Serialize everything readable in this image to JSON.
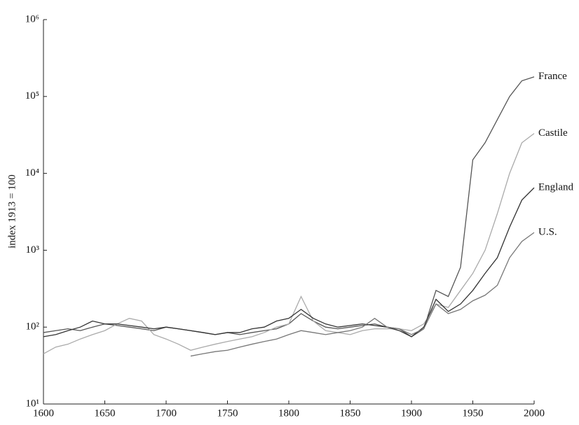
{
  "chart_data": {
    "type": "line",
    "ylabel": "index 1913 = 100",
    "log_y": true,
    "x": [
      1600,
      1610,
      1620,
      1630,
      1640,
      1650,
      1660,
      1670,
      1680,
      1690,
      1700,
      1710,
      1720,
      1730,
      1740,
      1750,
      1760,
      1770,
      1780,
      1790,
      1800,
      1810,
      1820,
      1830,
      1840,
      1850,
      1860,
      1870,
      1880,
      1890,
      1900,
      1910,
      1920,
      1930,
      1940,
      1950,
      1960,
      1970,
      1980,
      1990,
      2000
    ],
    "series": [
      {
        "name": "France",
        "color": "#555555",
        "values": [
          85,
          90,
          95,
          90,
          100,
          110,
          105,
          100,
          95,
          90,
          100,
          95,
          90,
          85,
          80,
          85,
          80,
          85,
          90,
          95,
          110,
          150,
          120,
          100,
          95,
          100,
          105,
          110,
          100,
          95,
          75,
          95,
          300,
          250,
          600,
          15000,
          25000,
          50000,
          100000,
          160000,
          180000
        ]
      },
      {
        "name": "Castile",
        "color": "#aaaaaa",
        "values": [
          45,
          55,
          60,
          70,
          80,
          90,
          110,
          130,
          120,
          80,
          70,
          60,
          50,
          55,
          60,
          65,
          70,
          75,
          85,
          100,
          110,
          250,
          120,
          90,
          85,
          80,
          90,
          95,
          95,
          95,
          90,
          110,
          200,
          180,
          300,
          500,
          1000,
          3000,
          10000,
          25000,
          33000
        ]
      },
      {
        "name": "England",
        "color": "#333333",
        "values": [
          75,
          80,
          90,
          100,
          120,
          110,
          110,
          105,
          100,
          95,
          100,
          95,
          90,
          85,
          80,
          85,
          85,
          95,
          100,
          120,
          130,
          170,
          130,
          110,
          100,
          105,
          110,
          105,
          100,
          90,
          75,
          100,
          230,
          160,
          200,
          300,
          500,
          800,
          2000,
          4500,
          6500
        ]
      },
      {
        "name": "U.S.",
        "color": "#777777",
        "values": [
          null,
          null,
          null,
          null,
          null,
          null,
          null,
          null,
          null,
          null,
          null,
          null,
          42,
          45,
          48,
          50,
          55,
          60,
          65,
          70,
          80,
          90,
          85,
          80,
          85,
          90,
          100,
          130,
          100,
          95,
          80,
          95,
          200,
          150,
          170,
          220,
          260,
          350,
          800,
          1300,
          1700
        ]
      }
    ],
    "xlim": [
      1600,
      2000
    ],
    "xticks": [
      1600,
      1650,
      1700,
      1750,
      1800,
      1850,
      1900,
      1950,
      2000
    ],
    "ylim": [
      10,
      1000000
    ],
    "yticks": [
      {
        "value": 10,
        "label": "10¹"
      },
      {
        "value": 100,
        "label": "10²"
      },
      {
        "value": 1000,
        "label": "10³"
      },
      {
        "value": 10000,
        "label": "10⁴"
      },
      {
        "value": 100000,
        "label": "10⁵"
      },
      {
        "value": 1000000,
        "label": "10⁶"
      }
    ]
  }
}
